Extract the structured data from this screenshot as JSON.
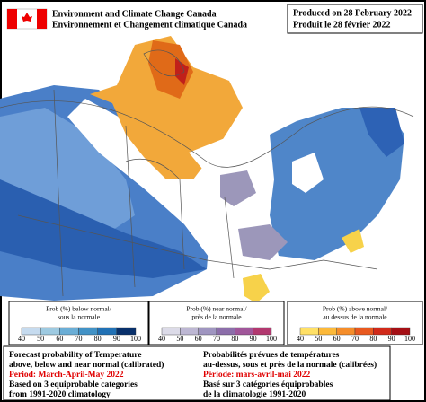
{
  "header": {
    "agency": [
      "Environment and Climate Change Canada",
      "Environnement et Changement climatique Canada"
    ],
    "produced": [
      "Produced on 28 February 2022",
      "Produit le 28 février 2022"
    ]
  },
  "legends": [
    {
      "title": [
        "Prob (%) below normal/",
        "sous la normale"
      ],
      "ticks": [
        40,
        50,
        60,
        70,
        80,
        90,
        100
      ]
    },
    {
      "title": [
        "Prob (%) near normal/",
        "près de la normale"
      ],
      "ticks": [
        40,
        50,
        60,
        70,
        80,
        90,
        100
      ]
    },
    {
      "title": [
        "Prob (%) above normal/",
        "au dessus de la normale"
      ],
      "ticks": [
        40,
        50,
        60,
        70,
        80,
        90,
        100
      ]
    }
  ],
  "footer": {
    "english": [
      "Forecast probability of Temperature",
      "above, below and near normal (calibrated)",
      "Period: March-April-May 2022",
      "Based on 3 equiprobable categories",
      "from 1991-2020 climatology"
    ],
    "french": [
      "Probabilités prévues de températures",
      "au-dessus, sous et près de la normale (calibrées)",
      "Période: mars-avril-mai 2022",
      "Basé sur 3 catégories équiprobables",
      "de la climatologie 1991-2020"
    ]
  }
}
